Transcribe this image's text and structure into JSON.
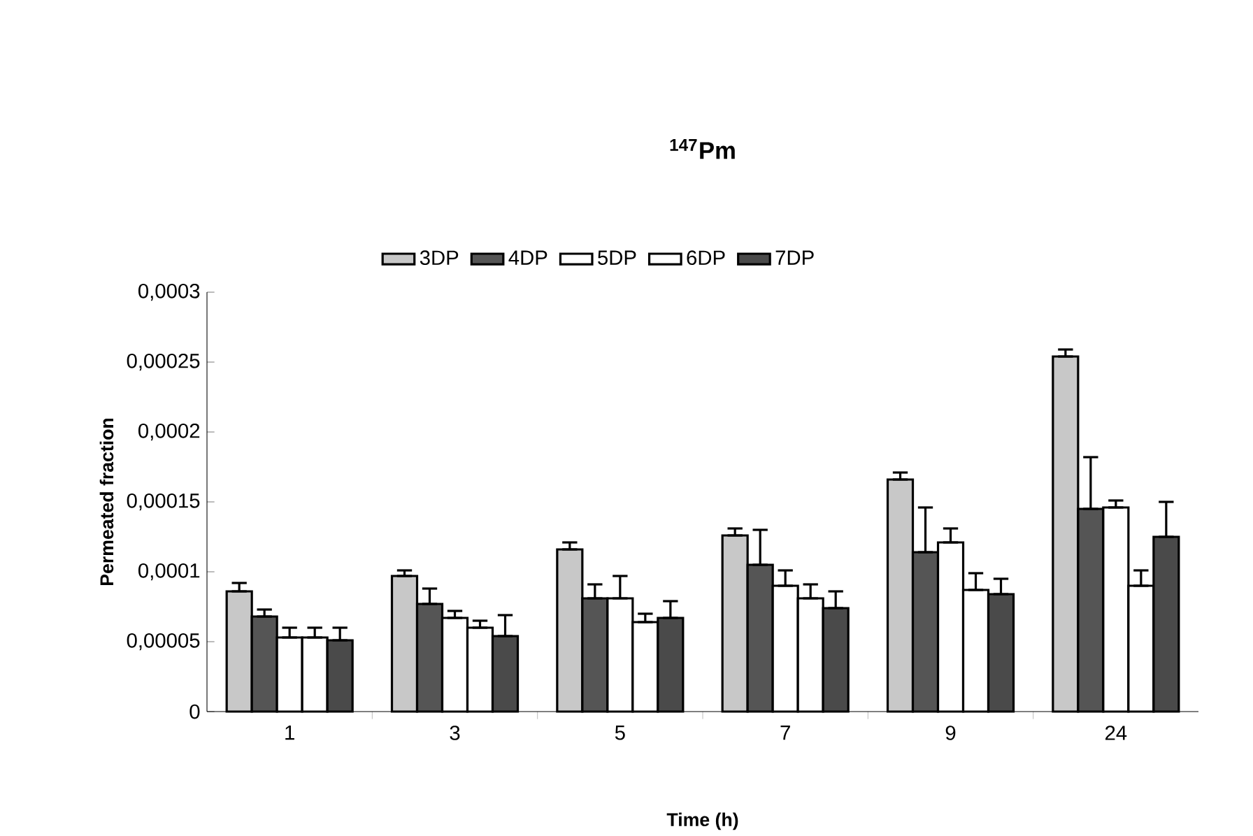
{
  "chart_data": {
    "type": "bar",
    "title": "$^{147}$Pm",
    "xlabel": "Time (h)",
    "ylabel": "Permeated fraction",
    "categories": [
      "1",
      "3",
      "5",
      "7",
      "9",
      "24"
    ],
    "ylim": [
      0,
      0.0003
    ],
    "yticks": [
      0,
      {
        "value": 5e-05,
        "label": "0,00005"
      },
      {
        "value": 0.0001,
        "label": "0,0001"
      },
      {
        "value": 0.00015,
        "label": "0,00015"
      },
      {
        "value": 0.0002,
        "label": "0,0002"
      },
      {
        "value": 0.00025,
        "label": "0,00025"
      },
      {
        "value": 0.0003,
        "label": "0,0003"
      }
    ],
    "legend": "top",
    "series": [
      {
        "name": "3DP",
        "color": "#c8c8c8",
        "values": [
          8.6e-05,
          9.7e-05,
          0.000116,
          0.000126,
          0.000166,
          0.000254
        ],
        "errors": [
          [
            8.6e-05,
            9.2e-05
          ],
          [
            9.7e-05,
            0.000101
          ],
          [
            0.000116,
            0.000121
          ],
          [
            0.000126,
            0.000131
          ],
          [
            0.000166,
            0.000171
          ],
          [
            0.000254,
            0.000259
          ]
        ]
      },
      {
        "name": "4DP",
        "color": "#555555",
        "values": [
          6.8e-05,
          7.7e-05,
          8.1e-05,
          0.000105,
          0.000114,
          0.000145
        ],
        "errors": [
          [
            6.8e-05,
            7.3e-05
          ],
          [
            7.7e-05,
            8.8e-05
          ],
          [
            8.1e-05,
            9.1e-05
          ],
          [
            0.000105,
            0.00013
          ],
          [
            0.000114,
            0.000146
          ],
          [
            0.000145,
            0.000182
          ]
        ]
      },
      {
        "name": "5DP",
        "color": "#ffffff",
        "values": [
          5.3e-05,
          6.7e-05,
          8.1e-05,
          9e-05,
          0.000121,
          0.000146
        ],
        "errors": [
          [
            5.3e-05,
            6e-05
          ],
          [
            6.7e-05,
            7.2e-05
          ],
          [
            8.1e-05,
            9.7e-05
          ],
          [
            9e-05,
            0.000101
          ],
          [
            0.000121,
            0.000131
          ],
          [
            0.000146,
            0.000151
          ]
        ]
      },
      {
        "name": "6DP",
        "color": "#ffffff",
        "values": [
          5.3e-05,
          6e-05,
          6.4e-05,
          8.1e-05,
          8.7e-05,
          9e-05
        ],
        "errors": [
          [
            5.3e-05,
            6e-05
          ],
          [
            6e-05,
            6.5e-05
          ],
          [
            6.4e-05,
            7e-05
          ],
          [
            8.1e-05,
            9.1e-05
          ],
          [
            8.7e-05,
            9.9e-05
          ],
          [
            9e-05,
            0.000101
          ]
        ]
      },
      {
        "name": "7DP",
        "color": "#4a4a4a",
        "values": [
          5.1e-05,
          5.4e-05,
          6.7e-05,
          7.4e-05,
          8.4e-05,
          0.000125
        ],
        "errors": [
          [
            5.1e-05,
            6e-05
          ],
          [
            5.4e-05,
            6.9e-05
          ],
          [
            6.7e-05,
            7.9e-05
          ],
          [
            7.4e-05,
            8.6e-05
          ],
          [
            8.4e-05,
            9.5e-05
          ],
          [
            0.000125,
            0.00015
          ]
        ]
      }
    ]
  }
}
